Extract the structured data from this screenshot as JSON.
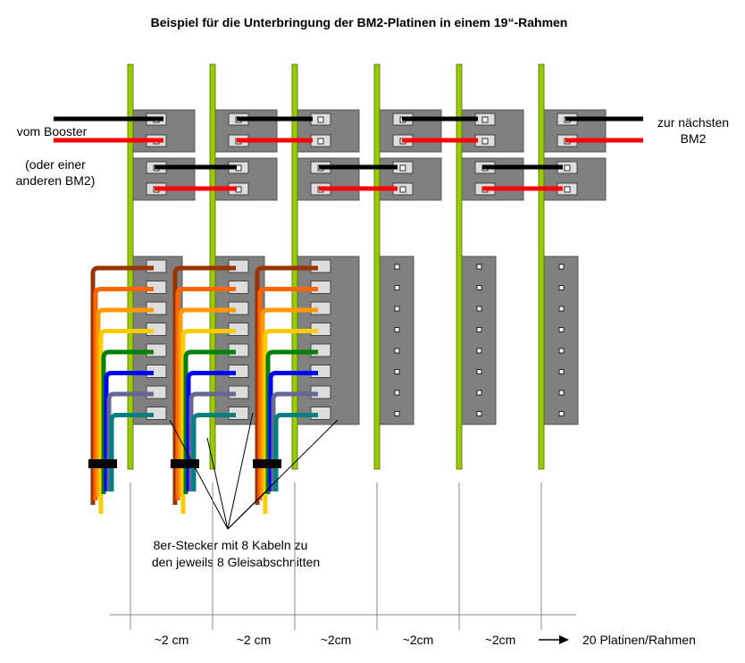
{
  "title": "Beispiel für die Unterbringung der BM2-Platinen in einem 19“-Rahmen",
  "input_label": {
    "line1": "vom Booster",
    "line2": "(oder einer",
    "line3": "anderen BM2)"
  },
  "output_label": {
    "line1": "zur nächsten",
    "line2": "BM2"
  },
  "connector_note": {
    "line1": "8er-Stecker mit 8 Kabeln zu",
    "line2": "den jeweils 8 Gleisabschnitten"
  },
  "spacing_labels": [
    "~2 cm",
    "~2 cm",
    "~2cm",
    "~2cm",
    "~2cm"
  ],
  "capacity_label": "20 Platinen/Rahmen"
}
